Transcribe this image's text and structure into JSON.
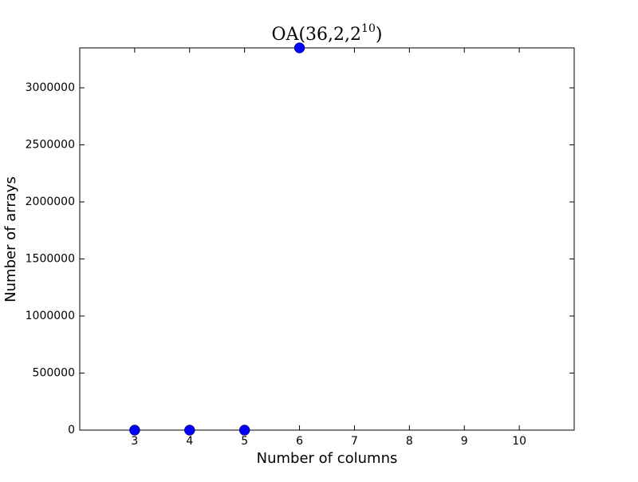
{
  "chart_data": {
    "type": "scatter",
    "title_parts": [
      "OA(36,2,2",
      "10",
      ")"
    ],
    "x_label": "Number of columns",
    "y_label": "Number of arrays",
    "x": [
      3,
      4,
      5,
      6
    ],
    "values": [
      0,
      0,
      0,
      3350000
    ],
    "color": "#0000ff",
    "xlim": [
      2,
      11
    ],
    "xticks": [
      3,
      4,
      5,
      6,
      7,
      8,
      9,
      10
    ],
    "ylim": [
      0,
      3350000
    ],
    "yticks": [
      0,
      500000,
      1000000,
      1500000,
      2000000,
      2500000,
      3000000
    ],
    "grid": false
  }
}
